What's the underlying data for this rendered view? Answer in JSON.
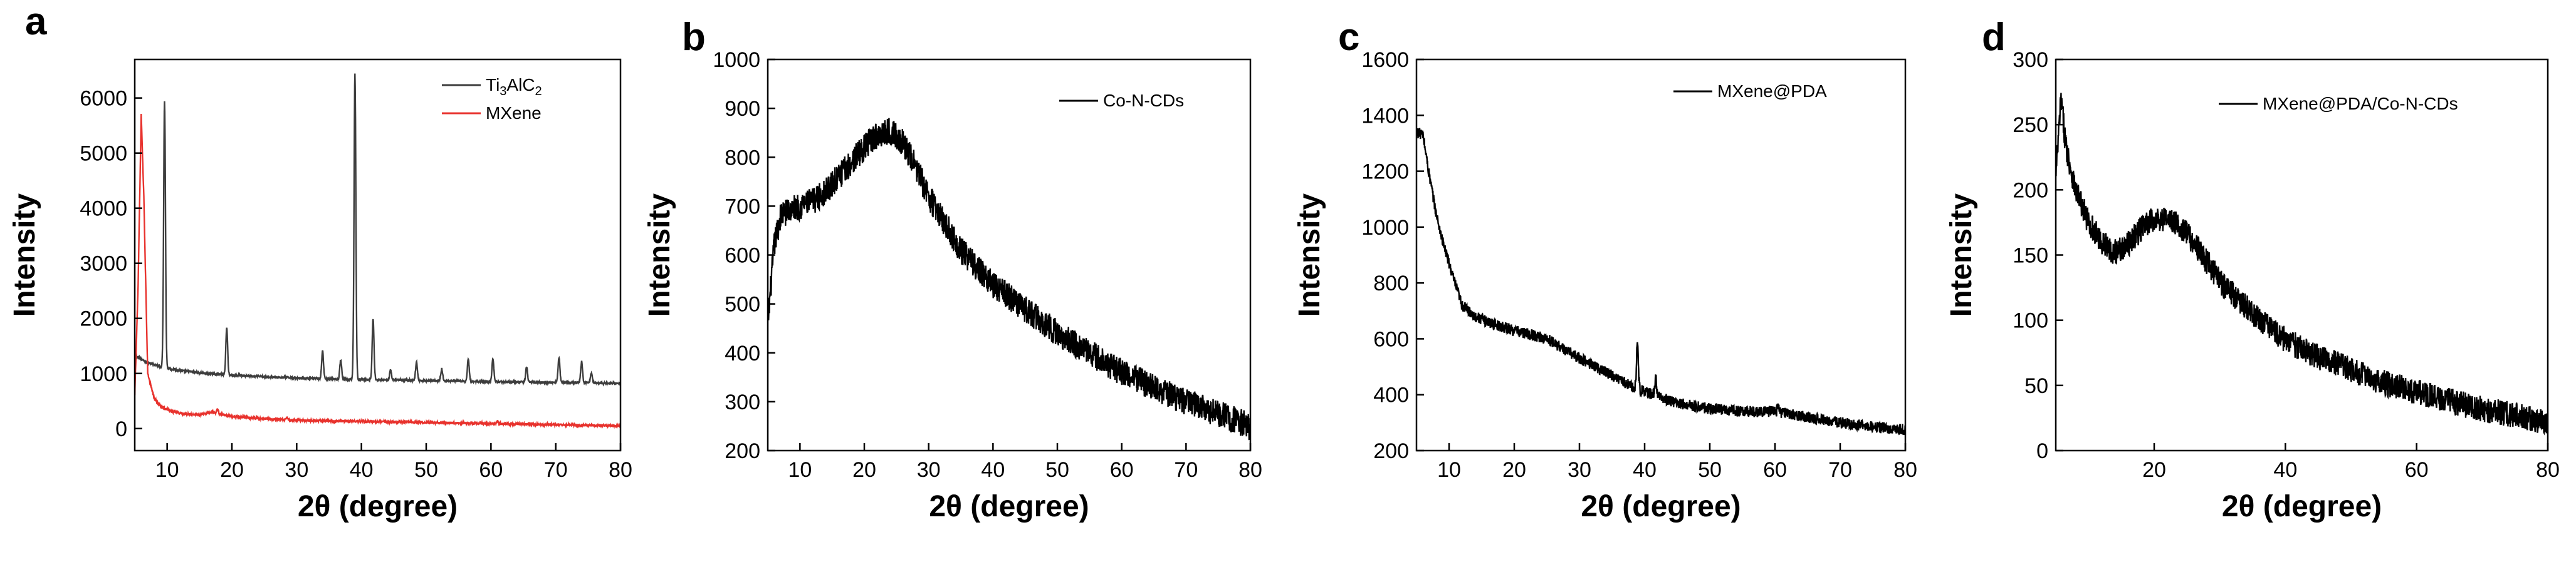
{
  "chart_data": [
    {
      "type": "line",
      "panel_label": "a",
      "xlabel": "2θ (degree)",
      "ylabel": "Intensity",
      "xlim": [
        5,
        80
      ],
      "ylim": [
        -400,
        6700
      ],
      "xticks": [
        10,
        20,
        30,
        40,
        50,
        60,
        70,
        80
      ],
      "xtick_labels": [
        "10",
        "20",
        "30",
        "40",
        "50",
        "60",
        "70",
        "80"
      ],
      "yticks": [
        0,
        1000,
        2000,
        3000,
        4000,
        5000,
        6000
      ],
      "ytick_labels": [
        "0",
        "1000",
        "2000",
        "3000",
        "4000",
        "5000",
        "6000"
      ],
      "legend_position": "top-right",
      "series": [
        {
          "name": "Ti3AlC2",
          "color": "#3d3d3d",
          "legend_parts": [
            "Ti",
            "3",
            "AlC",
            "2"
          ],
          "baseline": [
            [
              5,
              1330
            ],
            [
              6,
              1260
            ],
            [
              7,
              1200
            ],
            [
              8,
              1160
            ],
            [
              9,
              1120
            ],
            [
              12,
              1050
            ],
            [
              16,
              1000
            ],
            [
              20,
              970
            ],
            [
              25,
              940
            ],
            [
              30,
              920
            ],
            [
              35,
              900
            ],
            [
              40,
              890
            ],
            [
              50,
              870
            ],
            [
              60,
              850
            ],
            [
              70,
              840
            ],
            [
              80,
              820
            ]
          ],
          "peaks": [
            [
              9.6,
              4850
            ],
            [
              19.2,
              850
            ],
            [
              34.0,
              500
            ],
            [
              36.8,
              350
            ],
            [
              39.0,
              5550
            ],
            [
              41.8,
              1100
            ],
            [
              44.5,
              180
            ],
            [
              48.5,
              330
            ],
            [
              52.4,
              220
            ],
            [
              56.5,
              400
            ],
            [
              60.3,
              420
            ],
            [
              65.5,
              280
            ],
            [
              70.5,
              450
            ],
            [
              74.0,
              380
            ],
            [
              75.5,
              180
            ]
          ],
          "noise": 18
        },
        {
          "name": "MXene",
          "color": "#e8322d",
          "baseline": [
            [
              5,
              600
            ],
            [
              5.5,
              2500
            ],
            [
              6.0,
              5700
            ],
            [
              6.4,
              4200
            ],
            [
              7,
              1000
            ],
            [
              8,
              550
            ],
            [
              9,
              400
            ],
            [
              11,
              300
            ],
            [
              13,
              260
            ],
            [
              15,
              250
            ],
            [
              17,
              300
            ],
            [
              18,
              260
            ],
            [
              20,
              220
            ],
            [
              25,
              180
            ],
            [
              30,
              150
            ],
            [
              35,
              140
            ],
            [
              40,
              130
            ],
            [
              50,
              110
            ],
            [
              60,
              90
            ],
            [
              70,
              70
            ],
            [
              80,
              50
            ]
          ],
          "peaks": [
            [
              17.8,
              80
            ],
            [
              28.5,
              40
            ],
            [
              61.0,
              60
            ]
          ],
          "noise": 22
        }
      ]
    },
    {
      "type": "line",
      "panel_label": "b",
      "xlabel": "2θ (degree)",
      "ylabel": "Intensity",
      "xlim": [
        5,
        80
      ],
      "ylim": [
        200,
        1000
      ],
      "xticks": [
        10,
        20,
        30,
        40,
        50,
        60,
        70,
        80
      ],
      "xtick_labels": [
        "10",
        "20",
        "30",
        "40",
        "50",
        "60",
        "70",
        "80"
      ],
      "yticks": [
        200,
        300,
        400,
        500,
        600,
        700,
        800,
        900,
        1000
      ],
      "ytick_labels": [
        "200",
        "300",
        "400",
        "500",
        "600",
        "700",
        "800",
        "900",
        "1000"
      ],
      "legend_position": "top-right",
      "series": [
        {
          "name": "Co-N-CDs",
          "color": "#000000",
          "baseline": [
            [
              5,
              460
            ],
            [
              6,
              620
            ],
            [
              7,
              680
            ],
            [
              8,
              690
            ],
            [
              10,
              700
            ],
            [
              12,
              710
            ],
            [
              14,
              730
            ],
            [
              16,
              760
            ],
            [
              18,
              790
            ],
            [
              20,
              820
            ],
            [
              22,
              845
            ],
            [
              24,
              855
            ],
            [
              26,
              830
            ],
            [
              28,
              780
            ],
            [
              30,
              720
            ],
            [
              35,
              610
            ],
            [
              40,
              540
            ],
            [
              45,
              490
            ],
            [
              50,
              440
            ],
            [
              55,
              400
            ],
            [
              60,
              360
            ],
            [
              65,
              330
            ],
            [
              70,
              300
            ],
            [
              75,
              275
            ],
            [
              80,
              250
            ]
          ],
          "peaks": [],
          "noise": 28
        }
      ]
    },
    {
      "type": "line",
      "panel_label": "c",
      "xlabel": "2θ (degree)",
      "ylabel": "Intensity",
      "xlim": [
        5,
        80
      ],
      "ylim": [
        200,
        1600
      ],
      "xticks": [
        10,
        20,
        30,
        40,
        50,
        60,
        70,
        80
      ],
      "xtick_labels": [
        "10",
        "20",
        "30",
        "40",
        "50",
        "60",
        "70",
        "80"
      ],
      "yticks": [
        200,
        400,
        600,
        800,
        1000,
        1200,
        1400,
        1600
      ],
      "ytick_labels": [
        "200",
        "400",
        "600",
        "800",
        "1000",
        "1200",
        "1400",
        "1600"
      ],
      "legend_position": "top-right",
      "series": [
        {
          "name": "MXene@PDA",
          "color": "#000000",
          "baseline": [
            [
              5,
              1340
            ],
            [
              6,
              1330
            ],
            [
              7,
              1180
            ],
            [
              8,
              1050
            ],
            [
              9,
              950
            ],
            [
              10,
              870
            ],
            [
              11,
              790
            ],
            [
              12,
              720
            ],
            [
              14,
              680
            ],
            [
              16,
              660
            ],
            [
              20,
              630
            ],
            [
              25,
              600
            ],
            [
              30,
              530
            ],
            [
              35,
              470
            ],
            [
              38,
              430
            ],
            [
              40,
              410
            ],
            [
              45,
              370
            ],
            [
              50,
              350
            ],
            [
              55,
              340
            ],
            [
              60,
              340
            ],
            [
              65,
              320
            ],
            [
              70,
              300
            ],
            [
              75,
              285
            ],
            [
              80,
              275
            ]
          ],
          "peaks": [
            [
              38.9,
              170
            ],
            [
              41.7,
              60
            ],
            [
              60.5,
              20
            ]
          ],
          "noise": 20
        }
      ]
    },
    {
      "type": "line",
      "panel_label": "d",
      "xlabel": "2θ (degree)",
      "ylabel": "Intensity",
      "xlim": [
        5,
        80
      ],
      "ylim": [
        0,
        300
      ],
      "xticks": [
        20,
        40,
        60,
        80
      ],
      "xtick_labels": [
        "20",
        "40",
        "60",
        "80"
      ],
      "yticks": [
        0,
        50,
        100,
        150,
        200,
        250,
        300
      ],
      "ytick_labels": [
        "0",
        "50",
        "100",
        "150",
        "200",
        "250",
        "300"
      ],
      "legend_position": "top-right",
      "series": [
        {
          "name": "MXene@PDA/Co-N-CDs",
          "color": "#000000",
          "baseline": [
            [
              5,
              210
            ],
            [
              5.8,
              270
            ],
            [
              6.5,
              235
            ],
            [
              8,
              200
            ],
            [
              10,
              175
            ],
            [
              12,
              160
            ],
            [
              14,
              152
            ],
            [
              16,
              158
            ],
            [
              18,
              170
            ],
            [
              20,
              178
            ],
            [
              22,
              178
            ],
            [
              24,
              172
            ],
            [
              26,
              160
            ],
            [
              28,
              145
            ],
            [
              30,
              130
            ],
            [
              35,
              105
            ],
            [
              40,
              85
            ],
            [
              45,
              72
            ],
            [
              50,
              62
            ],
            [
              55,
              52
            ],
            [
              60,
              45
            ],
            [
              65,
              38
            ],
            [
              70,
              32
            ],
            [
              75,
              27
            ],
            [
              80,
              22
            ]
          ],
          "peaks": [],
          "noise": 10
        }
      ]
    }
  ]
}
